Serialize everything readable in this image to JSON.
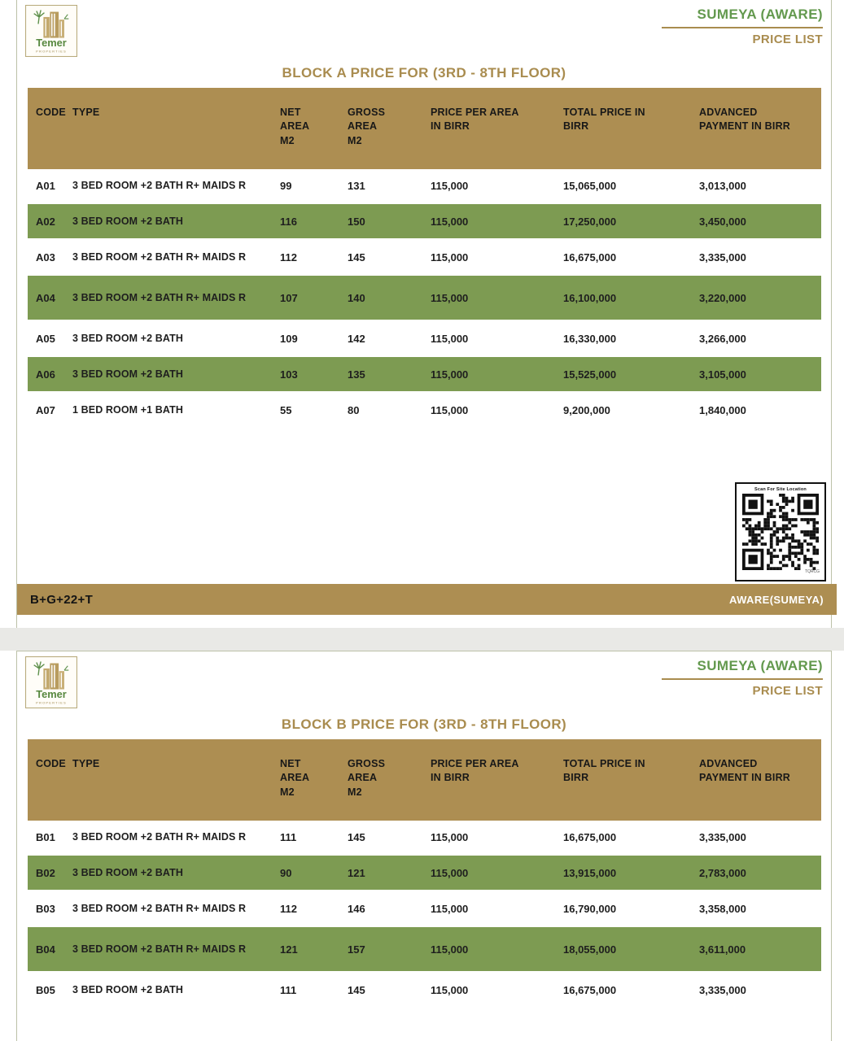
{
  "brand": {
    "logo_name": "Temer",
    "logo_sub": "PROPERTIES",
    "project": "SUMEYA (AWARE)",
    "doc": "PRICE LIST"
  },
  "colors": {
    "gold": "#ad8e52",
    "row_green": "#7d9b52",
    "title_gold": "#a98c4f",
    "brand_green": "#63994e"
  },
  "columns": [
    "CODE",
    "TYPE",
    "NET AREA M2",
    "GROSS AREA M2",
    "PRICE PER AREA IN BIRR",
    "TOTAL PRICE IN BIRR",
    "ADVANCED PAYMENT IN BIRR"
  ],
  "qr": {
    "label": "Scan For Site Location",
    "watermark": "TQRCG"
  },
  "blocks": [
    {
      "id": "A",
      "title": "BLOCK A PRICE FOR (3RD - 8TH FLOOR)",
      "footer_left": "B+G+22+T",
      "footer_right": "AWARE(SUMEYA)",
      "rows": [
        {
          "code": "A01",
          "type": "3 BED ROOM +2 BATH R+ MAIDS R",
          "net": "99",
          "gross": "131",
          "price_per": "115,000",
          "total": "15,065,000",
          "advance": "3,013,000",
          "highlight": false
        },
        {
          "code": "A02",
          "type": "3 BED ROOM +2 BATH",
          "net": "116",
          "gross": "150",
          "price_per": "115,000",
          "total": "17,250,000",
          "advance": "3,450,000",
          "highlight": true
        },
        {
          "code": "A03",
          "type": "3 BED ROOM +2 BATH R+ MAIDS R",
          "net": "112",
          "gross": "145",
          "price_per": "115,000",
          "total": "16,675,000",
          "advance": "3,335,000",
          "highlight": false
        },
        {
          "code": "A04",
          "type": "3 BED ROOM +2 BATH R+ MAIDS R",
          "net": "107",
          "gross": "140",
          "price_per": "115,000",
          "total": "16,100,000",
          "advance": "3,220,000",
          "highlight": true,
          "tall": true
        },
        {
          "code": "A05",
          "type": "3 BED ROOM +2 BATH",
          "net": "109",
          "gross": "142",
          "price_per": "115,000",
          "total": "16,330,000",
          "advance": "3,266,000",
          "highlight": false
        },
        {
          "code": "A06",
          "type": "3 BED ROOM +2 BATH",
          "net": "103",
          "gross": "135",
          "price_per": "115,000",
          "total": "15,525,000",
          "advance": "3,105,000",
          "highlight": true
        },
        {
          "code": "A07",
          "type": "1 BED ROOM +1 BATH",
          "net": "55",
          "gross": "80",
          "price_per": "115,000",
          "total": "9,200,000",
          "advance": "1,840,000",
          "highlight": false
        }
      ]
    },
    {
      "id": "B",
      "title": "BLOCK B PRICE FOR (3RD - 8TH FLOOR)",
      "rows": [
        {
          "code": "B01",
          "type": "3 BED ROOM +2 BATH R+ MAIDS R",
          "net": "111",
          "gross": "145",
          "price_per": "115,000",
          "total": "16,675,000",
          "advance": "3,335,000",
          "highlight": false
        },
        {
          "code": "B02",
          "type": "3 BED ROOM +2 BATH",
          "net": "90",
          "gross": "121",
          "price_per": "115,000",
          "total": "13,915,000",
          "advance": "2,783,000",
          "highlight": true
        },
        {
          "code": "B03",
          "type": "3 BED ROOM +2 BATH R+ MAIDS R",
          "net": "112",
          "gross": "146",
          "price_per": "115,000",
          "total": "16,790,000",
          "advance": "3,358,000",
          "highlight": false
        },
        {
          "code": "B04",
          "type": "3 BED ROOM +2 BATH R+ MAIDS R",
          "net": "121",
          "gross": "157",
          "price_per": "115,000",
          "total": "18,055,000",
          "advance": "3,611,000",
          "highlight": true,
          "tall": true
        },
        {
          "code": "B05",
          "type": "3 BED ROOM +2 BATH",
          "net": "111",
          "gross": "145",
          "price_per": "115,000",
          "total": "16,675,000",
          "advance": "3,335,000",
          "highlight": false
        }
      ]
    }
  ]
}
